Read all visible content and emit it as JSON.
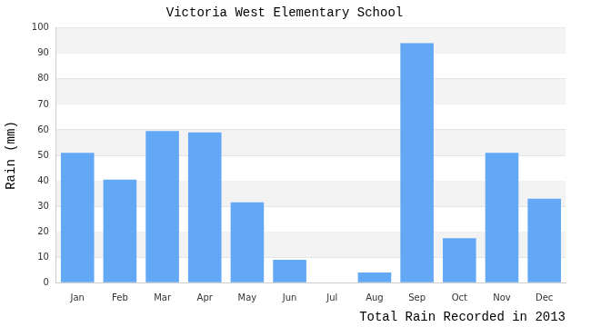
{
  "chart_data": {
    "type": "bar",
    "title": "Victoria West Elementary School",
    "y_label": "Rain (mm)",
    "x_label": "Total Rain Recorded in 2013",
    "categories": [
      "Jan",
      "Feb",
      "Mar",
      "Apr",
      "May",
      "Jun",
      "Jul",
      "Aug",
      "Sep",
      "Oct",
      "Nov",
      "Dec"
    ],
    "values": [
      51,
      40.5,
      59.5,
      59,
      31.5,
      9,
      0,
      4,
      94,
      17.5,
      51,
      33
    ],
    "color": "#62a8f5",
    "ylim": [
      0,
      100
    ],
    "yticks": [
      0,
      10,
      20,
      30,
      40,
      50,
      60,
      70,
      80,
      90,
      100
    ],
    "grid": true
  }
}
